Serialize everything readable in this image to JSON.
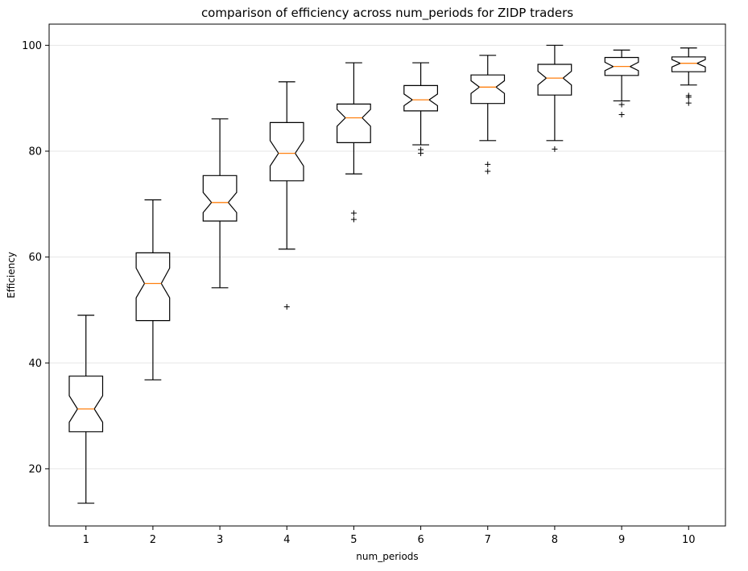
{
  "chart_data": {
    "type": "boxplot",
    "notched": true,
    "title": "comparison of efficiency across num_periods for ZIDP traders",
    "xlabel": "num_periods",
    "ylabel": "Efficiency",
    "ylim": [
      9.2,
      104
    ],
    "yticks": [
      20,
      40,
      60,
      80,
      100
    ],
    "grid": "horizontal",
    "categories": [
      "1",
      "2",
      "3",
      "4",
      "5",
      "6",
      "7",
      "8",
      "9",
      "10"
    ],
    "boxes": [
      {
        "label": "1",
        "whisker_low": 13.5,
        "q1": 27.0,
        "median": 31.3,
        "q3": 37.5,
        "whisker_high": 49.0,
        "notch_low": 28.8,
        "notch_high": 33.8,
        "outliers": []
      },
      {
        "label": "2",
        "whisker_low": 36.8,
        "q1": 48.0,
        "median": 55.0,
        "q3": 60.8,
        "whisker_high": 70.8,
        "notch_low": 52.3,
        "notch_high": 57.9,
        "outliers": []
      },
      {
        "label": "3",
        "whisker_low": 54.2,
        "q1": 66.8,
        "median": 70.3,
        "q3": 75.4,
        "whisker_high": 86.1,
        "notch_low": 68.4,
        "notch_high": 72.2,
        "outliers": []
      },
      {
        "label": "4",
        "whisker_low": 61.5,
        "q1": 74.4,
        "median": 79.6,
        "q3": 85.4,
        "whisker_high": 93.1,
        "notch_low": 77.2,
        "notch_high": 82.0,
        "outliers": [
          50.6
        ]
      },
      {
        "label": "5",
        "whisker_low": 75.7,
        "q1": 81.6,
        "median": 86.3,
        "q3": 88.9,
        "whisker_high": 96.7,
        "notch_low": 84.7,
        "notch_high": 87.9,
        "outliers": [
          67.1,
          68.3
        ]
      },
      {
        "label": "6",
        "whisker_low": 81.2,
        "q1": 87.6,
        "median": 89.7,
        "q3": 92.4,
        "whisker_high": 96.7,
        "notch_low": 88.6,
        "notch_high": 90.8,
        "outliers": [
          79.6,
          80.3
        ]
      },
      {
        "label": "7",
        "whisker_low": 82.0,
        "q1": 89.0,
        "median": 92.1,
        "q3": 94.4,
        "whisker_high": 98.1,
        "notch_low": 90.9,
        "notch_high": 93.3,
        "outliers": [
          76.2,
          77.5
        ]
      },
      {
        "label": "8",
        "whisker_low": 82.0,
        "q1": 90.6,
        "median": 93.8,
        "q3": 96.4,
        "whisker_high": 100.0,
        "notch_low": 92.5,
        "notch_high": 95.1,
        "outliers": [
          80.4
        ]
      },
      {
        "label": "9",
        "whisker_low": 89.5,
        "q1": 94.3,
        "median": 96.0,
        "q3": 97.7,
        "whisker_high": 99.1,
        "notch_low": 95.2,
        "notch_high": 96.8,
        "outliers": [
          86.9,
          88.8
        ]
      },
      {
        "label": "10",
        "whisker_low": 92.5,
        "q1": 95.0,
        "median": 96.6,
        "q3": 97.8,
        "whisker_high": 99.5,
        "notch_low": 95.9,
        "notch_high": 97.3,
        "outliers": [
          89.1,
          90.2,
          90.5
        ]
      }
    ],
    "colors": {
      "box": "#000000",
      "median": "#ff7f0e",
      "grid": "#e6e6e6",
      "outlier": "#000000"
    }
  }
}
